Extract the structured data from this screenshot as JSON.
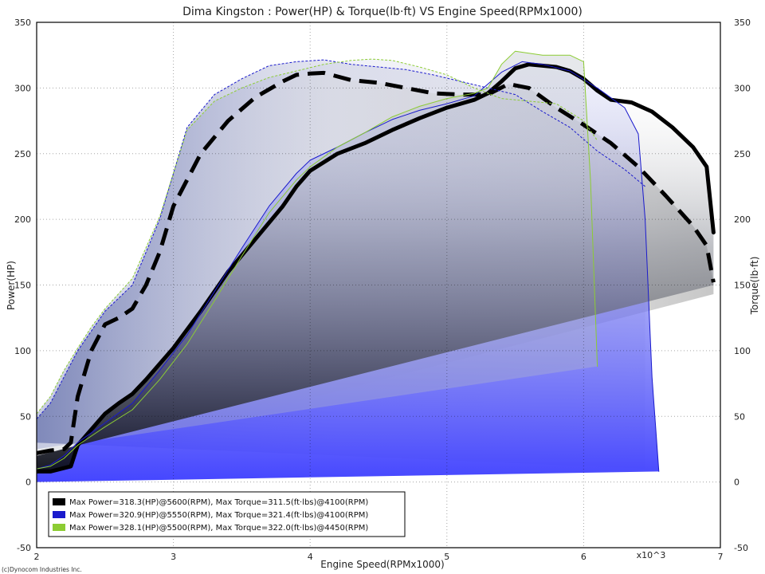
{
  "chart_data": {
    "type": "line",
    "title": "Dima Kingston : Power(HP) & Torque(lb·ft) VS Engine Speed(RPMx1000)",
    "xlabel": "Engine Speed(RPMx1000)",
    "ylabel": "Power(HP)",
    "y2label": "Torque(lb·ft)",
    "x_multiplier_label": "x10^3",
    "xlim": [
      2,
      7
    ],
    "ylim": [
      -50,
      350
    ],
    "y2lim": [
      -50,
      350
    ],
    "x_ticks": [
      "2",
      "3",
      "4",
      "5",
      "6",
      "7"
    ],
    "y_ticks": [
      "-50",
      "0",
      "50",
      "100",
      "150",
      "200",
      "250",
      "300",
      "350"
    ],
    "y2_ticks": [
      "-50",
      "0",
      "50",
      "100",
      "150",
      "200",
      "250",
      "300",
      "350"
    ],
    "grid": true,
    "legend_position": "bottom-left",
    "copyright": "(c)Dynocom Industries Inc.",
    "series": [
      {
        "name": "Max Power=318.3(HP)@5600(RPM), Max Torque=311.5(ft·lbs)@4100(RPM)",
        "color": "#000000",
        "power": {
          "x": [
            2.0,
            2.1,
            2.25,
            2.3,
            2.4,
            2.5,
            2.6,
            2.7,
            2.8,
            2.9,
            3.0,
            3.2,
            3.4,
            3.6,
            3.8,
            3.9,
            4.0,
            4.2,
            4.4,
            4.6,
            4.8,
            5.0,
            5.2,
            5.3,
            5.4,
            5.5,
            5.6,
            5.8,
            5.9,
            6.0,
            6.1,
            6.2,
            6.35,
            6.5,
            6.65,
            6.8,
            6.9,
            6.95
          ],
          "y": [
            8,
            8,
            12,
            28,
            40,
            52,
            60,
            67,
            78,
            90,
            102,
            130,
            160,
            185,
            210,
            225,
            237,
            250,
            258,
            268,
            277,
            285,
            291,
            296,
            305,
            315,
            318,
            316,
            313,
            307,
            298,
            291,
            289,
            282,
            270,
            255,
            240,
            190
          ]
        },
        "torque": {
          "x": [
            2.0,
            2.1,
            2.2,
            2.25,
            2.3,
            2.4,
            2.5,
            2.6,
            2.7,
            2.8,
            2.9,
            3.0,
            3.2,
            3.4,
            3.6,
            3.8,
            3.9,
            4.0,
            4.1,
            4.3,
            4.5,
            4.7,
            4.9,
            5.1,
            5.3,
            5.45,
            5.6,
            5.8,
            6.0,
            6.2,
            6.4,
            6.6,
            6.8,
            6.9,
            6.95
          ],
          "y": [
            22,
            24,
            25,
            30,
            65,
            100,
            120,
            125,
            132,
            150,
            175,
            210,
            250,
            275,
            293,
            305,
            310,
            311,
            311.5,
            306,
            304,
            300,
            296,
            295,
            295,
            303,
            300,
            285,
            272,
            258,
            240,
            218,
            195,
            180,
            152
          ]
        }
      },
      {
        "name": "Max Power=320.9(HP)@5550(RPM), Max Torque=321.4(ft·lbs)@4100(RPM)",
        "color": "#1a1acc",
        "power": {
          "x": [
            2.0,
            2.1,
            2.2,
            2.3,
            2.5,
            2.7,
            2.9,
            3.1,
            3.3,
            3.5,
            3.7,
            3.9,
            4.0,
            4.2,
            4.4,
            4.6,
            4.8,
            5.0,
            5.2,
            5.4,
            5.55,
            5.7,
            5.9,
            6.1,
            6.3,
            6.4,
            6.45,
            6.5,
            6.55
          ],
          "y": [
            10,
            13,
            20,
            30,
            45,
            60,
            85,
            112,
            145,
            178,
            210,
            235,
            245,
            255,
            266,
            276,
            283,
            288,
            294,
            312,
            320,
            318,
            313,
            300,
            285,
            265,
            200,
            80,
            8
          ]
        },
        "torque": {
          "x": [
            2.0,
            2.1,
            2.2,
            2.3,
            2.4,
            2.5,
            2.7,
            2.9,
            3.1,
            3.3,
            3.5,
            3.7,
            3.9,
            4.1,
            4.3,
            4.5,
            4.7,
            4.9,
            5.1,
            5.3,
            5.5,
            5.7,
            5.9,
            6.1,
            6.3,
            6.45
          ],
          "y": [
            48,
            60,
            80,
            100,
            115,
            130,
            150,
            200,
            270,
            295,
            307,
            317,
            320,
            321.4,
            318,
            316,
            314,
            310,
            305,
            300,
            295,
            282,
            270,
            252,
            238,
            225
          ]
        }
      },
      {
        "name": "Max Power=328.1(HP)@5500(RPM), Max Torque=322.0(ft·lbs)@4450(RPM)",
        "color": "#8ccc33",
        "power": {
          "x": [
            2.0,
            2.1,
            2.2,
            2.3,
            2.5,
            2.7,
            2.9,
            3.1,
            3.3,
            3.5,
            3.7,
            3.9,
            4.0,
            4.2,
            4.4,
            4.6,
            4.8,
            5.0,
            5.2,
            5.3,
            5.4,
            5.5,
            5.7,
            5.9,
            6.0,
            6.05,
            6.1
          ],
          "y": [
            10,
            12,
            18,
            28,
            42,
            55,
            78,
            105,
            138,
            172,
            205,
            230,
            240,
            255,
            266,
            278,
            286,
            292,
            296,
            300,
            318,
            328,
            325,
            325,
            320,
            230,
            88
          ]
        },
        "torque": {
          "x": [
            2.0,
            2.1,
            2.2,
            2.3,
            2.4,
            2.5,
            2.7,
            2.9,
            3.1,
            3.3,
            3.5,
            3.7,
            3.9,
            4.1,
            4.3,
            4.45,
            4.6,
            4.8,
            5.0,
            5.2,
            5.4,
            5.6,
            5.8,
            6.0,
            6.1
          ],
          "y": [
            52,
            65,
            85,
            102,
            118,
            132,
            155,
            202,
            268,
            290,
            300,
            308,
            313,
            318,
            321,
            322,
            321,
            316,
            310,
            300,
            292,
            290,
            288,
            275,
            260
          ]
        }
      }
    ]
  }
}
